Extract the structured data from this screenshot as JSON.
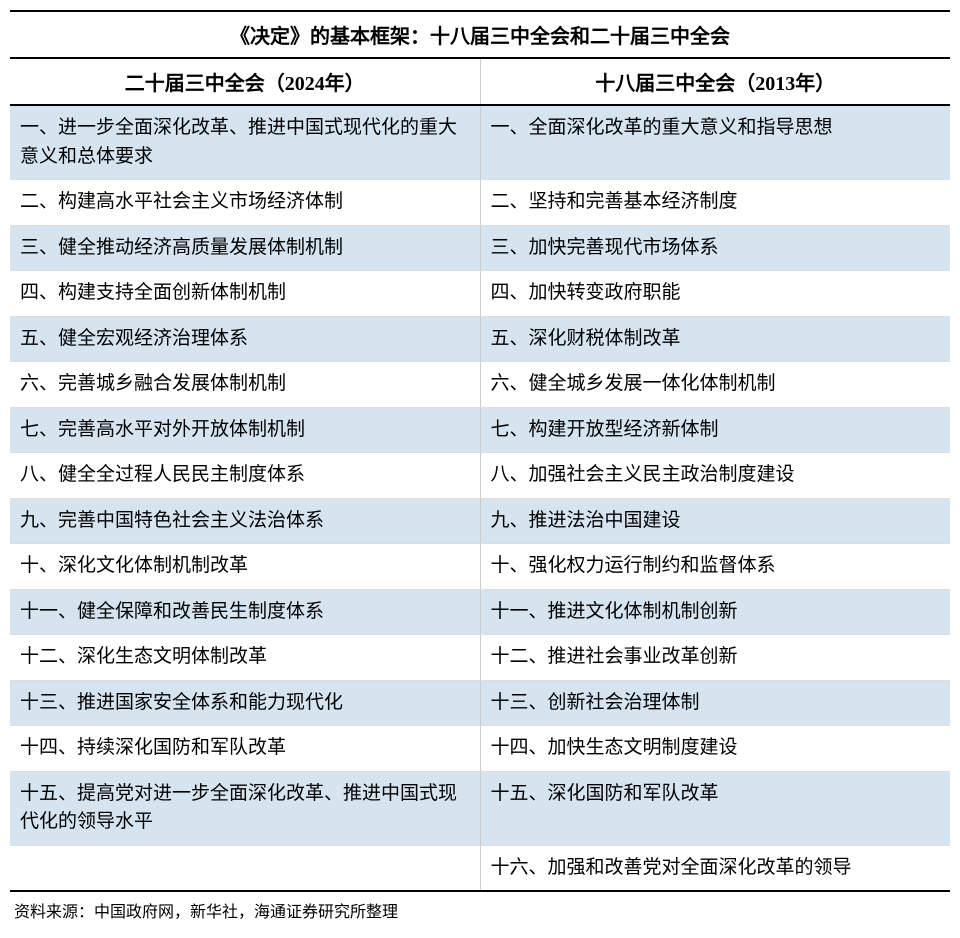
{
  "title": "《决定》的基本框架：十八届三中全会和二十届三中全会",
  "columns": [
    "二十届三中全会（2024年）",
    "十八届三中全会（2013年）"
  ],
  "rows": [
    [
      "一、进一步全面深化改革、推进中国式现代化的重大意义和总体要求",
      "一、全面深化改革的重大意义和指导思想"
    ],
    [
      "二、构建高水平社会主义市场经济体制",
      "二、坚持和完善基本经济制度"
    ],
    [
      "三、健全推动经济高质量发展体制机制",
      "三、加快完善现代市场体系"
    ],
    [
      "四、构建支持全面创新体制机制",
      "四、加快转变政府职能"
    ],
    [
      "五、健全宏观经济治理体系",
      "五、深化财税体制改革"
    ],
    [
      "六、完善城乡融合发展体制机制",
      "六、健全城乡发展一体化体制机制"
    ],
    [
      "七、完善高水平对外开放体制机制",
      "七、构建开放型经济新体制"
    ],
    [
      "八、健全全过程人民民主制度体系",
      "八、加强社会主义民主政治制度建设"
    ],
    [
      "九、完善中国特色社会主义法治体系",
      "九、推进法治中国建设"
    ],
    [
      "十、深化文化体制机制改革",
      "十、强化权力运行制约和监督体系"
    ],
    [
      "十一、健全保障和改善民生制度体系",
      "十一、推进文化体制机制创新"
    ],
    [
      "十二、深化生态文明体制改革",
      "十二、推进社会事业改革创新"
    ],
    [
      "十三、推进国家安全体系和能力现代化",
      "十三、创新社会治理体制"
    ],
    [
      "十四、持续深化国防和军队改革",
      "十四、加快生态文明制度建设"
    ],
    [
      "十五、提高党对进一步全面深化改革、推进中国式现代化的领导水平",
      "十五、深化国防和军队改革"
    ],
    [
      "",
      "十六、加强和改善党对全面深化改革的领导"
    ]
  ],
  "row_colors": {
    "odd": "#d6e4f0",
    "even": "#ffffff"
  },
  "source": "资料来源：中国政府网，新华社，海通证券研究所整理"
}
